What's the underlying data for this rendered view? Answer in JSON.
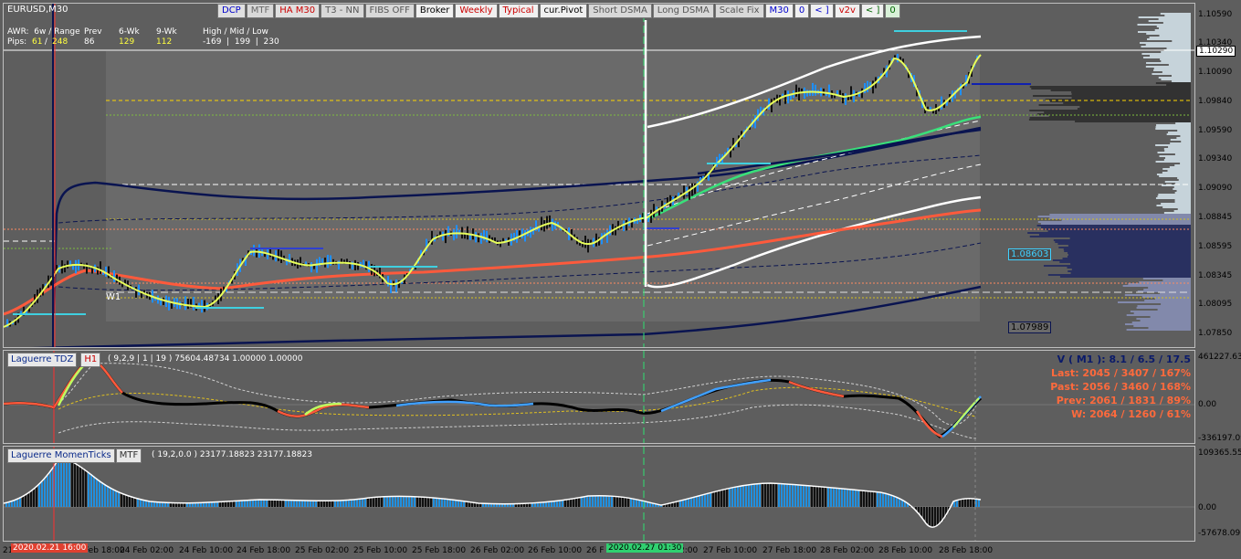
{
  "window": {
    "symbol_title": "EURUSD,M30"
  },
  "toolbar": [
    {
      "label": "DCP",
      "color": "#0000cc",
      "bg": "#e0e0e0"
    },
    {
      "label": "MTF",
      "color": "#666666",
      "bg": "#d8d8d8"
    },
    {
      "label": "HA M30",
      "color": "#cc0000",
      "bg": "#e0e0e0"
    },
    {
      "label": "T3 - NN",
      "color": "#555555",
      "bg": "#d8d8d8"
    },
    {
      "label": "FIBS OFF",
      "color": "#555555",
      "bg": "#d8d8d8"
    },
    {
      "label": "Broker",
      "color": "#000000",
      "bg": "#f0f0f0"
    },
    {
      "label": "Weekly",
      "color": "#cc0000",
      "bg": "#f0f0f0"
    },
    {
      "label": "Typical",
      "color": "#cc0000",
      "bg": "#f0f0f0"
    },
    {
      "label": "cur.Pivot",
      "color": "#000000",
      "bg": "#f0f0f0"
    },
    {
      "label": "Short DSMA",
      "color": "#555555",
      "bg": "#d8d8d8"
    },
    {
      "label": "Long DSMA",
      "color": "#555555",
      "bg": "#d8d8d8"
    },
    {
      "label": "Scale Fix",
      "color": "#555555",
      "bg": "#d8d8d8"
    },
    {
      "label": "M30",
      "color": "#0000cc",
      "bg": "#f0f0f0"
    },
    {
      "label": "0",
      "color": "#0000cc",
      "bg": "#f0f0f0"
    },
    {
      "label": "< ]",
      "color": "#0000cc",
      "bg": "#f0f0f0"
    },
    {
      "label": "v2v",
      "color": "#cc0000",
      "bg": "#f0f0f0"
    },
    {
      "label": "< ]",
      "color": "#006600",
      "bg": "#f0f0f0"
    },
    {
      "label": "0",
      "color": "#006600",
      "bg": "#d8f0d8"
    }
  ],
  "awr": {
    "line1_a": "AWR:  6w / Range",
    "line1_prev": "Prev",
    "line1_6wk": "6-Wk",
    "line1_9wk": "9-Wk",
    "line1_hml": "High / Mid / Low",
    "pips_label": "Pips:",
    "pips_61": "61",
    "pips_sep": " / ",
    "pips_248": "248",
    "prev_val": "86",
    "wk6_val": "129",
    "wk9_val": "112",
    "hml_val": "-169  |  199  |  230"
  },
  "main_labels": {
    "w1": "W1"
  },
  "price_axis": {
    "ticks": [
      "1.10590",
      "1.10340",
      "1.10090",
      "1.09840",
      "1.09590",
      "1.09340",
      "1.09090",
      "1.08845",
      "1.08595",
      "1.08345",
      "1.08095",
      "1.07850"
    ],
    "current_price": "1.10290",
    "tag_upper": "1.08603",
    "tag_lower": "1.07989"
  },
  "ind1": {
    "name": "Laguerre TDZ",
    "tf": "H1",
    "params": "( 9,2,9 | 1 | 19 ) 75604.48734 1.00000 1.00000",
    "axis_top": "461227.63",
    "axis_mid": "0.00",
    "axis_bot": "-336197.09",
    "stats": [
      {
        "text": "V ( M1 ): 8.1 / 6.5 / 17.5",
        "color": "#0a1a6a"
      },
      {
        "text": "Last: 2045 / 3407 / 167%",
        "color": "#ff6a3c"
      },
      {
        "text": "Past: 2056 / 3460 / 168%",
        "color": "#ff6a3c"
      },
      {
        "text": "Prev: 2061 / 1831 / 89%",
        "color": "#ff6a3c"
      },
      {
        "text": "W: 2064 / 1260 / 61%",
        "color": "#ff6a3c"
      }
    ]
  },
  "ind2": {
    "name": "Laguerre MomenTicks",
    "tf": "MTF",
    "params": "( 19,2,0.0 ) 23177.18823 23177.18823",
    "axis_top": "109365.55",
    "axis_mid": "0.00",
    "axis_bot": "-57678.09"
  },
  "time_axis": {
    "labels": [
      "21",
      "Feb 18:00",
      "24 Feb 02:00",
      "24 Feb 10:00",
      "24 Feb 18:00",
      "25 Feb 02:00",
      "25 Feb 10:00",
      "25 Feb 18:00",
      "26 Feb 02:00",
      "26 Feb 10:00",
      "26 F",
      "2:00",
      "27 Feb 10:00",
      "27 Feb 18:00",
      "28 Feb 02:00",
      "28 Feb 10:00",
      "28 Feb 18:00"
    ],
    "marker_red": "2020.02.21 16:00",
    "marker_green": "2020.02.27 01:30"
  }
}
